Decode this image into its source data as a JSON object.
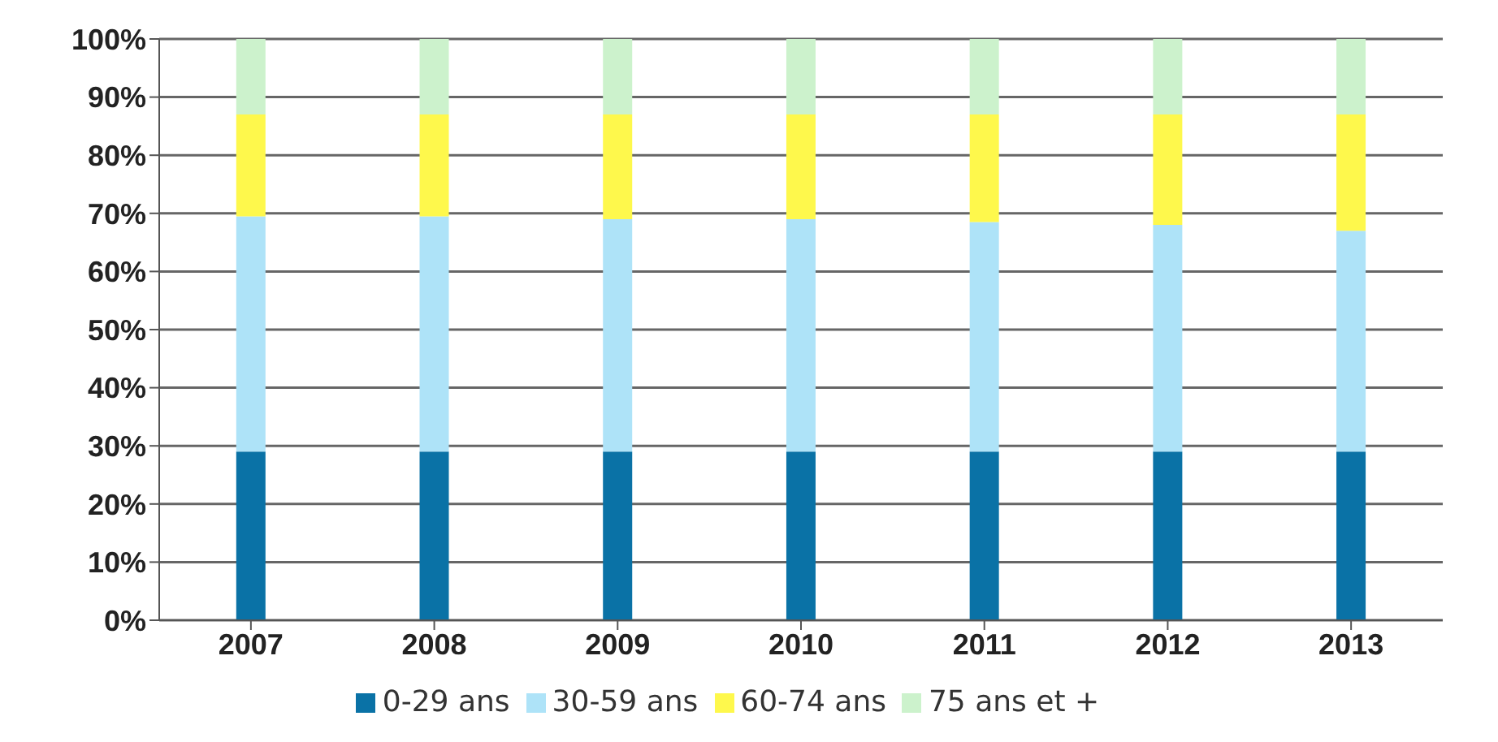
{
  "chart_data": {
    "type": "bar",
    "stacked": true,
    "categories": [
      "2007",
      "2008",
      "2009",
      "2010",
      "2011",
      "2012",
      "2013"
    ],
    "series": [
      {
        "name": "0-29 ans",
        "color": "#0a72a6",
        "values": [
          29,
          29,
          29,
          29,
          29,
          29,
          29
        ]
      },
      {
        "name": "30-59 ans",
        "color": "#aee3f8",
        "values": [
          40.5,
          40.5,
          40,
          40,
          39.5,
          39,
          38
        ]
      },
      {
        "name": "60-74 ans",
        "color": "#fef84c",
        "values": [
          17.5,
          17.5,
          18,
          18,
          18.5,
          19,
          20
        ]
      },
      {
        "name": "75 ans et +",
        "color": "#ccf2cc",
        "values": [
          13,
          13,
          13,
          13,
          13,
          13,
          13
        ]
      }
    ],
    "ylim": [
      0,
      100
    ],
    "yticks": [
      {
        "value": 0,
        "label": "0%"
      },
      {
        "value": 10,
        "label": "10%"
      },
      {
        "value": 20,
        "label": "20%"
      },
      {
        "value": 30,
        "label": "30%"
      },
      {
        "value": 40,
        "label": "40%"
      },
      {
        "value": 50,
        "label": "50%"
      },
      {
        "value": 60,
        "label": "60%"
      },
      {
        "value": 70,
        "label": "70%"
      },
      {
        "value": 80,
        "label": "80%"
      },
      {
        "value": 90,
        "label": "90%"
      },
      {
        "value": 100,
        "label": "100%"
      }
    ],
    "grid": "y",
    "legend": "bottom"
  }
}
